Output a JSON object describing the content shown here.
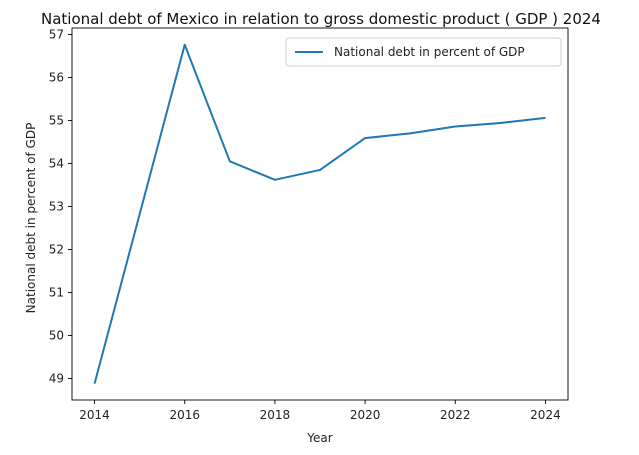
{
  "chart_data": {
    "type": "line",
    "title": "National debt of Mexico in relation to gross domestic product ( GDP ) 2024",
    "xlabel": "Year",
    "ylabel": "National debt in percent of GDP",
    "x": [
      2014,
      2016,
      2017,
      2018,
      2019,
      2020,
      2021,
      2022,
      2023,
      2024
    ],
    "series": [
      {
        "name": "National debt in percent of GDP",
        "values": [
          48.88,
          56.76,
          54.05,
          53.62,
          53.85,
          54.59,
          54.7,
          54.86,
          54.94,
          55.06
        ],
        "color": "#1f77b4"
      }
    ],
    "xticks": [
      2014,
      2016,
      2018,
      2020,
      2022,
      2024
    ],
    "yticks": [
      49,
      50,
      51,
      52,
      53,
      54,
      55,
      56,
      57
    ],
    "xlim": [
      2013.5,
      2024.5
    ],
    "ylim": [
      48.5,
      57.15
    ],
    "grid": false,
    "legend_position": "top-right"
  }
}
